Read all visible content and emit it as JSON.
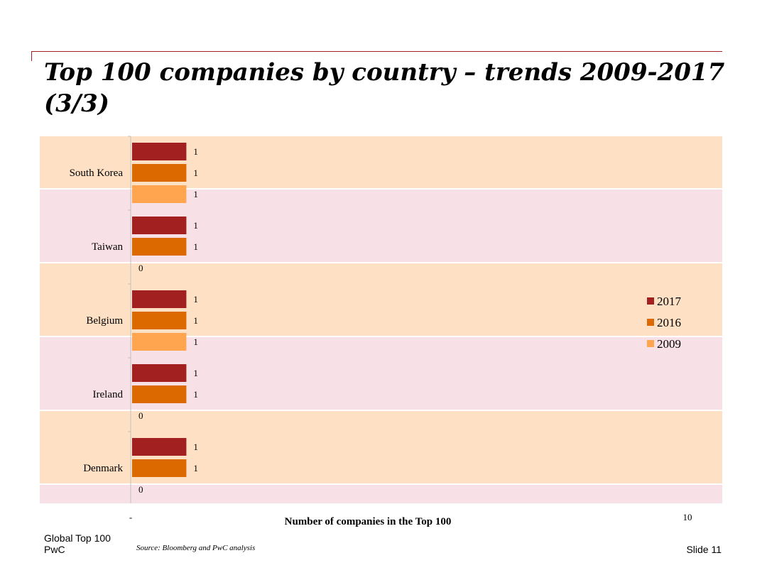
{
  "slide": {
    "title": "Top 100 companies by country – trends 2009-2017 (3/3)",
    "footer_line1": "Global Top 100",
    "footer_line2": "PwC",
    "source": "Source: Bloomberg and PwC analysis",
    "slide_number": "Slide 11"
  },
  "chart_data": {
    "type": "bar",
    "orientation": "horizontal",
    "categories": [
      "South Korea",
      "Taiwan",
      "Belgium",
      "Ireland",
      "Denmark"
    ],
    "series": [
      {
        "name": "2017",
        "color": "#a32020",
        "values": [
          1,
          1,
          1,
          1,
          1
        ]
      },
      {
        "name": "2016",
        "color": "#dc6900",
        "values": [
          1,
          1,
          1,
          1,
          1
        ]
      },
      {
        "name": "2009",
        "color": "#ffa54f",
        "values": [
          1,
          0,
          1,
          0,
          0
        ]
      }
    ],
    "xlabel": "Number of companies in the Top 100",
    "xlim": [
      0,
      10
    ],
    "x_tick_labels": [
      "-",
      "10"
    ],
    "legend_position": "right",
    "band_colors": [
      "#fee1c4",
      "#f8e1e6"
    ]
  }
}
